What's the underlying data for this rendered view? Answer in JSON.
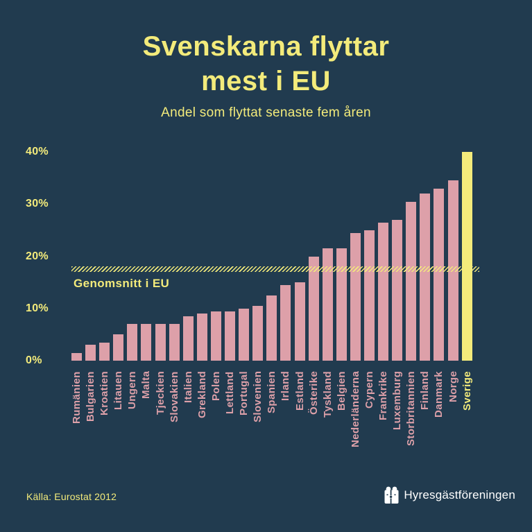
{
  "header": {
    "title_line1": "Svenskarna flyttar",
    "title_line2": "mest i EU",
    "subtitle": "Andel som flyttat senaste fem åren"
  },
  "chart_data": {
    "type": "bar",
    "title": "Svenskarna flyttar mest i EU",
    "subtitle": "Andel som flyttat senaste fem åren",
    "unit": "%",
    "ylim": [
      0,
      40
    ],
    "y_ticks": [
      "40%",
      "30%",
      "20%",
      "10%",
      "0%"
    ],
    "y_tick_values": [
      40,
      30,
      20,
      10,
      0
    ],
    "grid": "off",
    "categories": [
      "Rumänien",
      "Bulgarien",
      "Kroatien",
      "Litauen",
      "Ungern",
      "Malta",
      "Tjeckien",
      "Slovakien",
      "Italien",
      "Grekland",
      "Polen",
      "Lettland",
      "Portugal",
      "Slovenien",
      "Spanien",
      "Irland",
      "Estland",
      "Österike",
      "Tyskland",
      "Belgien",
      "Nederländerna",
      "Cypern",
      "Frankrike",
      "Luxemburg",
      "Storbritannien",
      "Finland",
      "Danmark",
      "Norge",
      "Sverige"
    ],
    "values": [
      1.5,
      3,
      3.5,
      5,
      7,
      7,
      7,
      7,
      8.5,
      9,
      9.5,
      9.5,
      10,
      10.5,
      12.5,
      14.5,
      15,
      20,
      21.5,
      21.5,
      24.5,
      25,
      26.5,
      27,
      30.5,
      32,
      33,
      34.5,
      40
    ],
    "highlight_category": "Sverige",
    "average_line": {
      "label": "Genomsnitt i EU",
      "value": 17.5
    },
    "colors": {
      "bar": "#DDA0A9",
      "highlight": "#F3EB7B"
    }
  },
  "footer": {
    "source": "Källa: Eurostat 2012",
    "brand": "Hyresgästföreningen",
    "brand_icon": "hyresgastforeningen-cube-logo"
  },
  "colors": {
    "background": "#213B4F",
    "accent_yellow": "#F3EB7B",
    "bar_pink": "#DDA0A9",
    "text_white": "#FFFFFF"
  }
}
